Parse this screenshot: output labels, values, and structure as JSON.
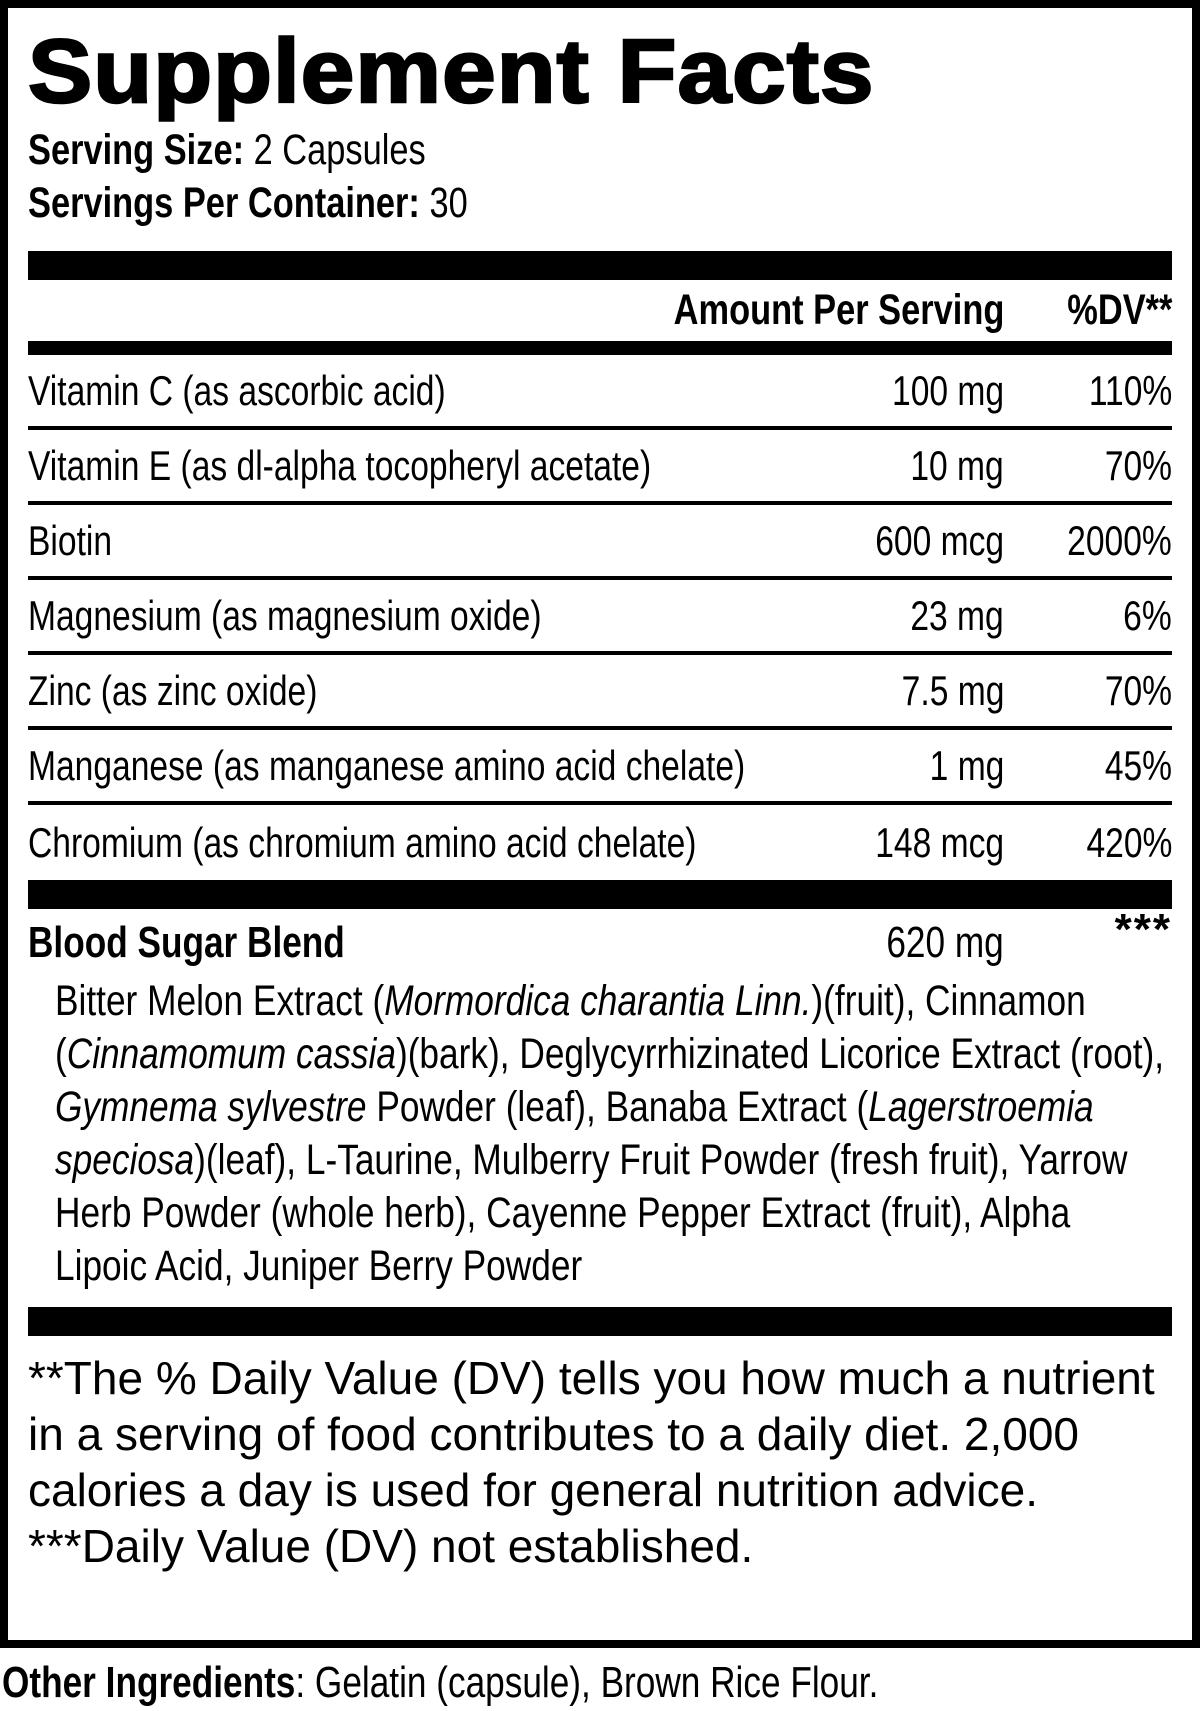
{
  "colors": {
    "text": "#000000",
    "background": "#ffffff"
  },
  "label": {
    "title": "Supplement Facts",
    "serving_size": {
      "label": "Serving Size:",
      "value": "2 Capsules"
    },
    "servings_per_container": {
      "label": "Servings Per Container:",
      "value": "30"
    },
    "table_header": {
      "amount": "Amount Per Serving",
      "dv": "%DV**"
    },
    "nutrients": [
      {
        "name": "Vitamin C (as ascorbic acid)",
        "amount": "100 mg",
        "dv": "110%"
      },
      {
        "name": "Vitamin E (as dl-alpha tocopheryl acetate)",
        "amount": "10 mg",
        "dv": "70%"
      },
      {
        "name": "Biotin",
        "amount": "600 mcg",
        "dv": "2000%"
      },
      {
        "name": "Magnesium (as magnesium oxide)",
        "amount": "23 mg",
        "dv": "6%"
      },
      {
        "name": "Zinc (as zinc oxide)",
        "amount": "7.5 mg",
        "dv": "70%"
      },
      {
        "name": "Manganese (as manganese amino acid chelate)",
        "amount": "1 mg",
        "dv": "45%"
      },
      {
        "name": "Chromium (as chromium amino acid chelate)",
        "amount": "148 mcg",
        "dv": "420%"
      }
    ],
    "blend": {
      "name": "Blood Sugar Blend",
      "amount": "620 mg",
      "dv": "***",
      "description_segments": [
        {
          "text": "Bitter Melon Extract (",
          "italic": false
        },
        {
          "text": "Mormordica charantia Linn.",
          "italic": true
        },
        {
          "text": ")(fruit), Cinnamon (",
          "italic": false
        },
        {
          "text": "Cinnamomum cassia",
          "italic": true
        },
        {
          "text": ")(bark), Deglycyrrhizinated Licorice Extract (root), ",
          "italic": false
        },
        {
          "text": "Gymnema sylvestre",
          "italic": true
        },
        {
          "text": " Powder (leaf), Banaba Extract (",
          "italic": false
        },
        {
          "text": "Lagerstroemia speciosa",
          "italic": true
        },
        {
          "text": ")(leaf), L-Taurine, Mulberry Fruit Powder (fresh fruit), Yarrow Herb Powder (whole herb), Cayenne Pepper Extract (fruit), Alpha Lipoic Acid, Juniper Berry Powder",
          "italic": false
        }
      ]
    },
    "footnotes": {
      "daily_value": "**The % Daily Value (DV) tells you how much a nutrient in a serving of food contributes to a daily diet. 2,000 calories a day is used for general nutrition advice.",
      "not_established": "***Daily Value (DV) not established."
    },
    "other_ingredients": {
      "label": "Other Ingredients",
      "value": ": Gelatin (capsule), Brown Rice Flour."
    }
  }
}
